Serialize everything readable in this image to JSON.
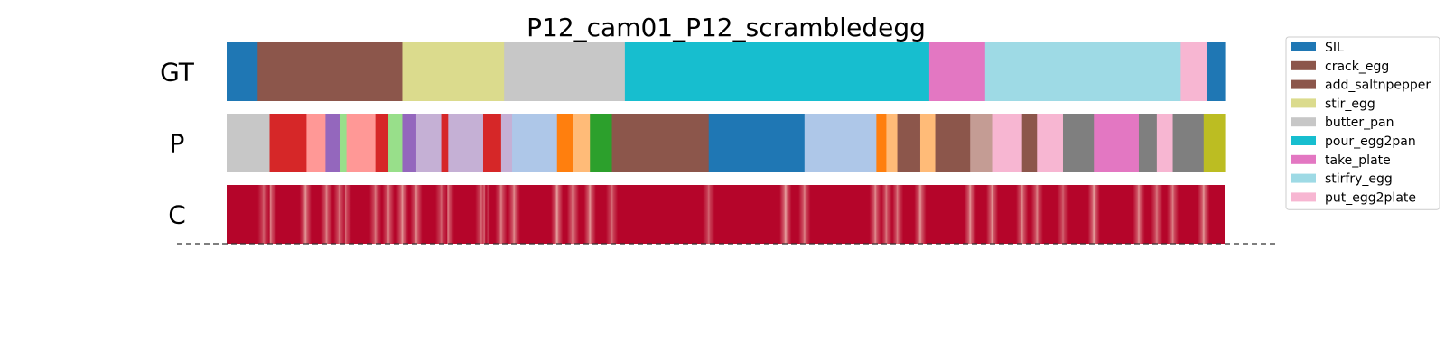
{
  "chart_data": {
    "type": "segmentation_bars",
    "title": "P12_cam01_P12_scrambledegg",
    "x_range": [
      0,
      1000
    ],
    "rows": [
      {
        "label": "GT",
        "segments": [
          {
            "start": 0,
            "end": 31,
            "label": "SIL"
          },
          {
            "start": 31,
            "end": 176,
            "label": "crack_egg"
          },
          {
            "start": 176,
            "end": 278,
            "label": "stir_egg"
          },
          {
            "start": 278,
            "end": 399,
            "label": "butter_pan"
          },
          {
            "start": 399,
            "end": 704,
            "label": "pour_egg2pan"
          },
          {
            "start": 704,
            "end": 760,
            "label": "take_plate"
          },
          {
            "start": 760,
            "end": 956,
            "label": "stirfry_egg"
          },
          {
            "start": 956,
            "end": 982,
            "label": "put_egg2plate"
          },
          {
            "start": 982,
            "end": 1000,
            "label": "SIL"
          }
        ]
      },
      {
        "label": "P",
        "segments": [
          {
            "start": 0,
            "end": 43,
            "color": "#c7c7c7"
          },
          {
            "start": 43,
            "end": 80,
            "color": "#d62728"
          },
          {
            "start": 80,
            "end": 99,
            "color": "#ff9896"
          },
          {
            "start": 99,
            "end": 114,
            "color": "#9467bd"
          },
          {
            "start": 114,
            "end": 120,
            "color": "#98df8a"
          },
          {
            "start": 120,
            "end": 149,
            "color": "#ff9896"
          },
          {
            "start": 149,
            "end": 162,
            "color": "#d62728"
          },
          {
            "start": 162,
            "end": 176,
            "color": "#98df8a"
          },
          {
            "start": 176,
            "end": 190,
            "color": "#9467bd"
          },
          {
            "start": 190,
            "end": 215,
            "color": "#c5b0d5"
          },
          {
            "start": 215,
            "end": 222,
            "color": "#d62728"
          },
          {
            "start": 222,
            "end": 257,
            "color": "#c5b0d5"
          },
          {
            "start": 257,
            "end": 275,
            "color": "#d62728"
          },
          {
            "start": 275,
            "end": 286,
            "color": "#c5b0d5"
          },
          {
            "start": 286,
            "end": 331,
            "color": "#aec7e8"
          },
          {
            "start": 331,
            "end": 347,
            "color": "#ff7f0e"
          },
          {
            "start": 347,
            "end": 364,
            "color": "#ffbb78"
          },
          {
            "start": 364,
            "end": 386,
            "color": "#2ca02c"
          },
          {
            "start": 386,
            "end": 483,
            "color": "#8c564b"
          },
          {
            "start": 483,
            "end": 579,
            "color": "#1f77b4"
          },
          {
            "start": 579,
            "end": 651,
            "color": "#aec7e8"
          },
          {
            "start": 651,
            "end": 661,
            "color": "#ff7f0e"
          },
          {
            "start": 661,
            "end": 672,
            "color": "#ffbb78"
          },
          {
            "start": 672,
            "end": 695,
            "color": "#8c564b"
          },
          {
            "start": 695,
            "end": 710,
            "color": "#ffbb78"
          },
          {
            "start": 710,
            "end": 745,
            "color": "#8c564b"
          },
          {
            "start": 745,
            "end": 767,
            "color": "#c49c94"
          },
          {
            "start": 767,
            "end": 797,
            "color": "#f7b6d2"
          },
          {
            "start": 797,
            "end": 812,
            "color": "#8c564b"
          },
          {
            "start": 812,
            "end": 838,
            "color": "#f7b6d2"
          },
          {
            "start": 838,
            "end": 869,
            "color": "#7f7f7f"
          },
          {
            "start": 869,
            "end": 914,
            "color": "#e377c2"
          },
          {
            "start": 914,
            "end": 932,
            "color": "#7f7f7f"
          },
          {
            "start": 932,
            "end": 948,
            "color": "#f7b6d2"
          },
          {
            "start": 948,
            "end": 979,
            "color": "#7f7f7f"
          },
          {
            "start": 979,
            "end": 1000,
            "color": "#bcbd22"
          }
        ]
      },
      {
        "label": "C",
        "base_color": "#b5052a",
        "dips": [
          {
            "x": 37,
            "v": 0.45
          },
          {
            "x": 44,
            "v": 0.6
          },
          {
            "x": 79,
            "v": 0.7
          },
          {
            "x": 100,
            "v": 0.6
          },
          {
            "x": 113,
            "v": 0.55
          },
          {
            "x": 119,
            "v": 0.5
          },
          {
            "x": 149,
            "v": 0.55
          },
          {
            "x": 162,
            "v": 0.6
          },
          {
            "x": 176,
            "v": 0.7
          },
          {
            "x": 190,
            "v": 0.65
          },
          {
            "x": 215,
            "v": 0.45
          },
          {
            "x": 222,
            "v": 0.55
          },
          {
            "x": 255,
            "v": 0.5
          },
          {
            "x": 258,
            "v": 0.55
          },
          {
            "x": 275,
            "v": 0.6
          },
          {
            "x": 288,
            "v": 0.65
          },
          {
            "x": 331,
            "v": 0.75
          },
          {
            "x": 347,
            "v": 0.65
          },
          {
            "x": 364,
            "v": 0.7
          },
          {
            "x": 386,
            "v": 0.5
          },
          {
            "x": 483,
            "v": 0.45
          },
          {
            "x": 560,
            "v": 0.75
          },
          {
            "x": 579,
            "v": 0.6
          },
          {
            "x": 650,
            "v": 0.65
          },
          {
            "x": 661,
            "v": 0.55
          },
          {
            "x": 672,
            "v": 0.55
          },
          {
            "x": 695,
            "v": 0.7
          },
          {
            "x": 745,
            "v": 0.7
          },
          {
            "x": 767,
            "v": 0.7
          },
          {
            "x": 797,
            "v": 0.65
          },
          {
            "x": 812,
            "v": 0.6
          },
          {
            "x": 838,
            "v": 0.45
          },
          {
            "x": 869,
            "v": 0.75
          },
          {
            "x": 914,
            "v": 0.65
          },
          {
            "x": 932,
            "v": 0.55
          },
          {
            "x": 948,
            "v": 0.6
          },
          {
            "x": 979,
            "v": 0.7
          }
        ]
      }
    ],
    "legend": {
      "placement": "right",
      "entries": [
        {
          "label": "SIL",
          "color": "#1f77b4"
        },
        {
          "label": "crack_egg",
          "color": "#8c564b"
        },
        {
          "label": "add_saltnpepper",
          "color": "#8c564b"
        },
        {
          "label": "stir_egg",
          "color": "#dbdb8d"
        },
        {
          "label": "butter_pan",
          "color": "#c7c7c7"
        },
        {
          "label": "pour_egg2pan",
          "color": "#17becf"
        },
        {
          "label": "take_plate",
          "color": "#e377c2"
        },
        {
          "label": "stirfry_egg",
          "color": "#9edae5"
        },
        {
          "label": "put_egg2plate",
          "color": "#f7b6d2"
        }
      ]
    }
  }
}
